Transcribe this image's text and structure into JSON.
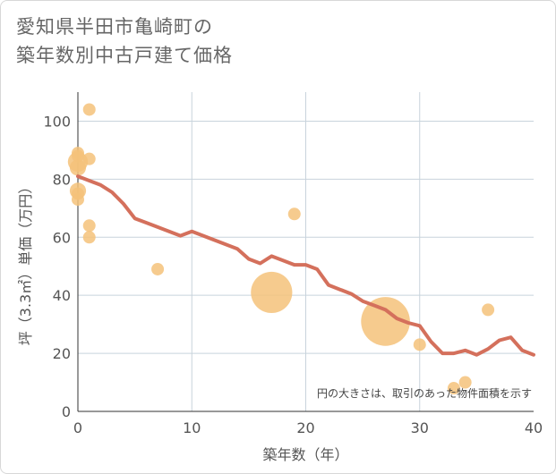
{
  "page": {
    "title_line1": "愛知県半田市亀崎町の",
    "title_line2": "築年数別中古戸建て価格"
  },
  "chart_data": {
    "type": "scatter",
    "title": "愛知県半田市亀崎町の築年数別中古戸建て価格",
    "xlabel": "築年数（年）",
    "ylabel": "坪（3.3㎡）単価（万円）",
    "xlim": [
      0,
      40
    ],
    "ylim": [
      0,
      110
    ],
    "xticks": [
      0,
      10,
      20,
      30,
      40
    ],
    "yticks": [
      0,
      20,
      40,
      60,
      80,
      100
    ],
    "grid": true,
    "annotation": "円の大きさは、取引のあった物件面積を示す",
    "colors": {
      "bubble": "#f5c27a",
      "line": "#d4705c",
      "grid": "#c8d3dc",
      "text": "#555555"
    },
    "scatter_points": [
      {
        "x": 0,
        "y": 89,
        "size": 1
      },
      {
        "x": 0,
        "y": 88,
        "size": 1
      },
      {
        "x": 0,
        "y": 86,
        "size": 1.6
      },
      {
        "x": 0,
        "y": 84,
        "size": 1.3
      },
      {
        "x": 0,
        "y": 76,
        "size": 1.3
      },
      {
        "x": 0,
        "y": 75,
        "size": 1
      },
      {
        "x": 0,
        "y": 73,
        "size": 1
      },
      {
        "x": 1,
        "y": 104,
        "size": 1
      },
      {
        "x": 1,
        "y": 87,
        "size": 1
      },
      {
        "x": 1,
        "y": 64,
        "size": 1
      },
      {
        "x": 1,
        "y": 60,
        "size": 1
      },
      {
        "x": 7,
        "y": 49,
        "size": 1
      },
      {
        "x": 17,
        "y": 41,
        "size": 3.3
      },
      {
        "x": 19,
        "y": 68,
        "size": 1
      },
      {
        "x": 27,
        "y": 31,
        "size": 3.9
      },
      {
        "x": 30,
        "y": 23,
        "size": 1
      },
      {
        "x": 33,
        "y": 8,
        "size": 1
      },
      {
        "x": 34,
        "y": 10,
        "size": 1
      },
      {
        "x": 36,
        "y": 35,
        "size": 1
      }
    ],
    "trend_line": {
      "x": [
        0,
        1,
        2,
        3,
        4,
        5,
        6,
        7,
        8,
        9,
        10,
        11,
        12,
        13,
        14,
        15,
        16,
        17,
        18,
        19,
        20,
        21,
        22,
        23,
        24,
        25,
        26,
        27,
        28,
        29,
        30,
        31,
        32,
        33,
        34,
        35,
        36,
        37,
        38,
        39,
        40
      ],
      "y": [
        81,
        79.5,
        78,
        75.5,
        71.5,
        66.5,
        65,
        63.5,
        62,
        60.5,
        62,
        60.5,
        59,
        57.5,
        56,
        52.5,
        51,
        53.5,
        52,
        50.5,
        50.5,
        49,
        43.5,
        42,
        40.5,
        38,
        36.5,
        35,
        32,
        30.5,
        29.5,
        24,
        20,
        20,
        21,
        19.5,
        21.5,
        24.5,
        25.5,
        21,
        19.5
      ]
    }
  }
}
